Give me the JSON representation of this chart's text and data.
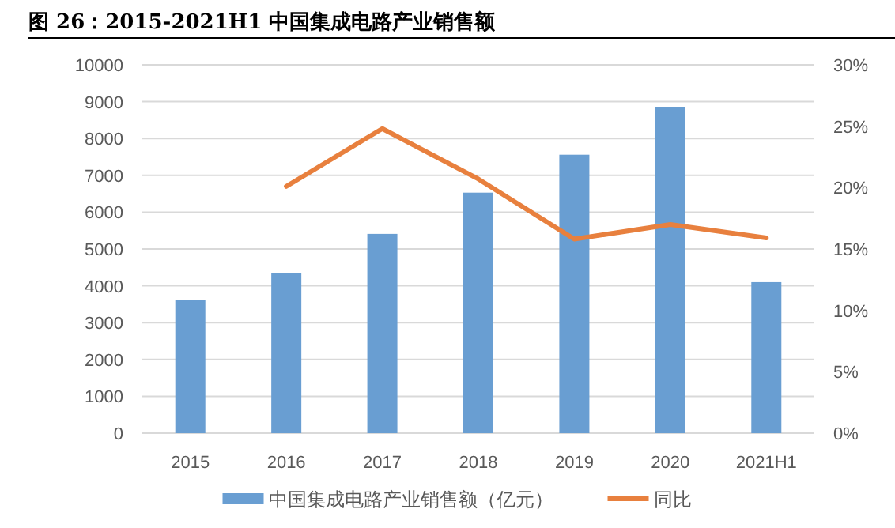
{
  "chart_data": {
    "type": "bar",
    "title": "图 26：2015-2021H1 中国集成电路产业销售额",
    "categories": [
      "2015",
      "2016",
      "2017",
      "2018",
      "2019",
      "2020",
      "2021H1"
    ],
    "series": [
      {
        "name": "中国集成电路产业销售额（亿元）",
        "color": "#699ed2",
        "values": [
          3610,
          4340,
          5410,
          6530,
          7560,
          8850,
          4100
        ]
      },
      {
        "name": "同比",
        "type": "line",
        "axis": "y2",
        "color": "#e8803e",
        "values": [
          null,
          20.1,
          24.8,
          20.7,
          15.8,
          17.0,
          15.9
        ]
      }
    ],
    "ylim": [
      0,
      10000
    ],
    "yticks": [
      0,
      1000,
      2000,
      3000,
      4000,
      5000,
      6000,
      7000,
      8000,
      9000,
      10000
    ],
    "y2lim": [
      0,
      30
    ],
    "y2ticks": [
      {
        "value": 0,
        "label": "0%"
      },
      {
        "value": 5,
        "label": "5%"
      },
      {
        "value": 10,
        "label": "10%"
      },
      {
        "value": 15,
        "label": "15%"
      },
      {
        "value": 20,
        "label": "20%"
      },
      {
        "value": 25,
        "label": "25%"
      },
      {
        "value": 30,
        "label": "30%"
      }
    ],
    "grid": "y",
    "legend": "bottom",
    "marker": "none",
    "line_style": "solid"
  }
}
